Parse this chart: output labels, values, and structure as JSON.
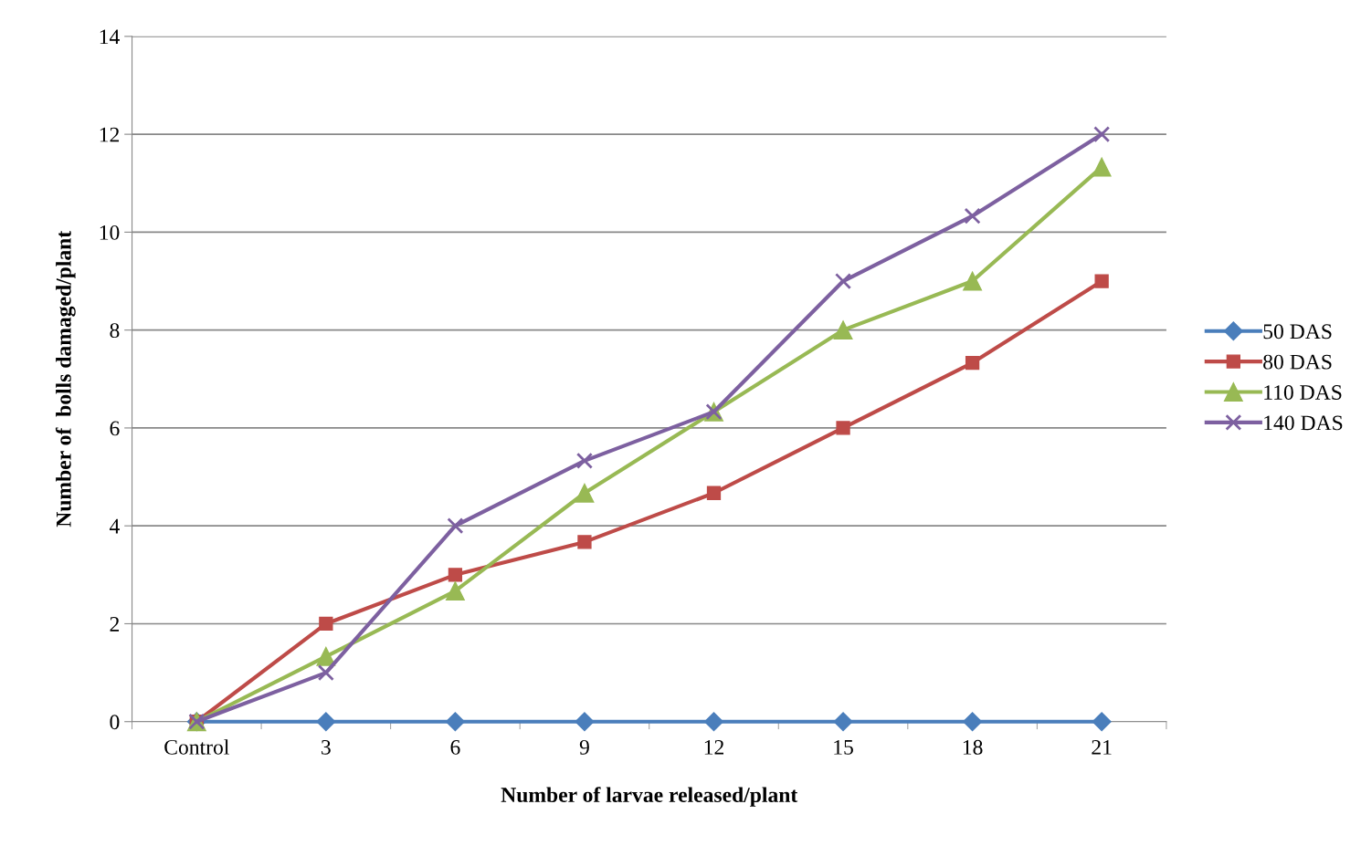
{
  "chart_data": {
    "type": "line",
    "xlabel": "Number of larvae released/plant",
    "ylabel": "Number of  bolls damaged/plant",
    "categories": [
      "Control",
      "3",
      "6",
      "9",
      "12",
      "15",
      "18",
      "21"
    ],
    "series": [
      {
        "name": "50 DAS",
        "color": "#4a7ebb",
        "marker": "diamond",
        "values": [
          0,
          0,
          0,
          0,
          0,
          0,
          0,
          0
        ]
      },
      {
        "name": "80 DAS",
        "color": "#be4b48",
        "marker": "square",
        "values": [
          0,
          2,
          3,
          3.67,
          4.67,
          6,
          7.33,
          9
        ]
      },
      {
        "name": "110 DAS",
        "color": "#98b954",
        "marker": "triangle",
        "values": [
          0,
          1.33,
          2.67,
          4.67,
          6.33,
          8,
          9,
          11.33
        ]
      },
      {
        "name": "140 DAS",
        "color": "#7d60a0",
        "marker": "cross",
        "values": [
          0,
          1,
          4,
          5.33,
          6.33,
          9,
          10.33,
          12
        ]
      }
    ],
    "ylim": [
      0,
      14
    ],
    "yticks": [
      0,
      2,
      4,
      6,
      8,
      10,
      12,
      14
    ],
    "grid": "y",
    "legend": "right"
  }
}
